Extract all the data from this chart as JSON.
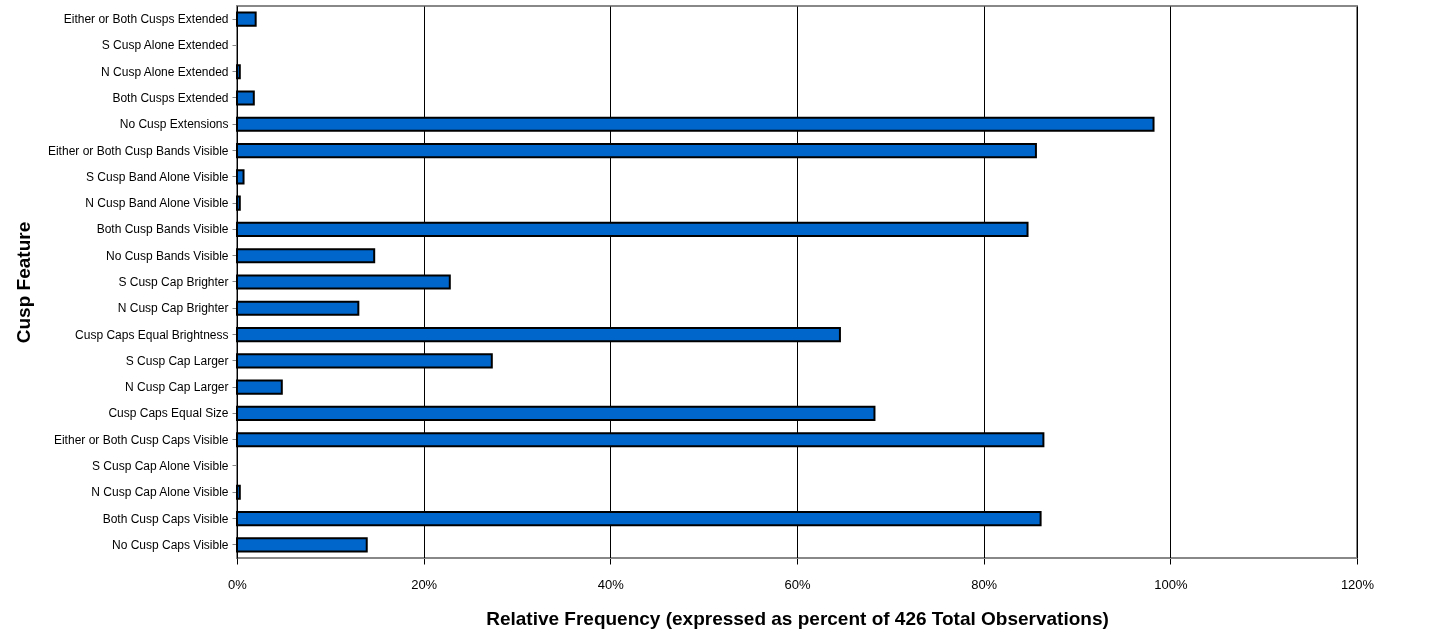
{
  "chart_data": {
    "type": "bar",
    "orientation": "horizontal",
    "xlabel": "Relative Frequency (expressed as percent of 426 Total Observations)",
    "ylabel": "Cusp Feature",
    "categories": [
      "Either or Both Cusps Extended",
      "S Cusp Alone Extended",
      "N Cusp Alone Extended",
      "Both Cusps Extended",
      "No Cusp Extensions",
      "Either or Both Cusp Bands Visible",
      "S Cusp Band Alone Visible",
      "N Cusp Band Alone Visible",
      "Both Cusp Bands Visible",
      "No Cusp Bands Visible",
      "S Cusp Cap Brighter",
      "N Cusp Cap Brighter",
      "Cusp Caps Equal Brightness",
      "S Cusp Cap Larger",
      "N Cusp Cap Larger",
      "Cusp Caps Equal Size",
      "Either or Both Cusp Caps Visible",
      "S Cusp Cap Alone Visible",
      "N Cusp Cap Alone Visible",
      "Both Cusp Caps Visible",
      "No Cusp Caps Visible"
    ],
    "values": [
      2.0,
      0,
      0.3,
      1.8,
      98.2,
      85.6,
      0.7,
      0.3,
      84.7,
      14.7,
      22.8,
      13.0,
      64.6,
      27.3,
      4.8,
      68.3,
      86.4,
      0,
      0.3,
      86.1,
      13.9
    ],
    "color": "#0066cc",
    "xlim": [
      0,
      120
    ],
    "xticks": [
      {
        "value": 0,
        "label": "0%"
      },
      {
        "value": 20,
        "label": "20%"
      },
      {
        "value": 40,
        "label": "40%"
      },
      {
        "value": 60,
        "label": "60%"
      },
      {
        "value": 80,
        "label": "80%"
      },
      {
        "value": 100,
        "label": "100%"
      },
      {
        "value": 120,
        "label": "120%"
      }
    ],
    "grid": "x"
  }
}
